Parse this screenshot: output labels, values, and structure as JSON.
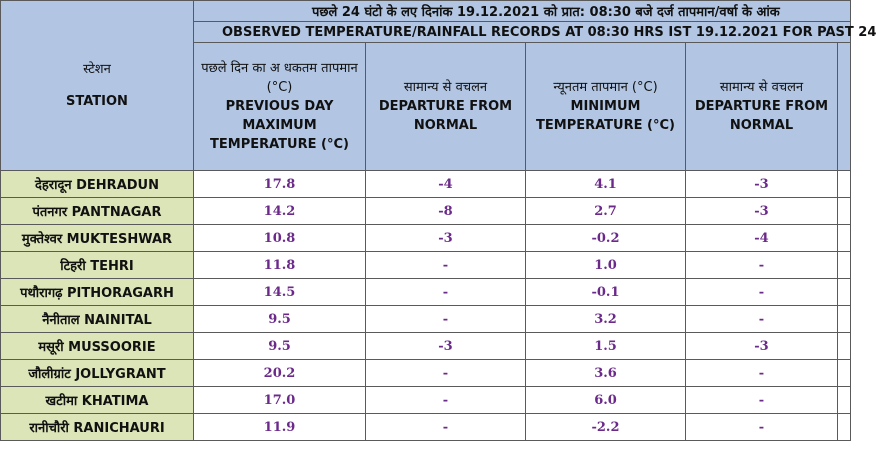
{
  "header": {
    "hindi_title": "पछले 24 घंटो के  लए दिनांक 19.12.2021 को प्रात: 08:30 बजे दर्ज तापमान/वर्षा के आंक",
    "english_title": "OBSERVED TEMPERATURE/RAINFALL RECORDS AT 08:30 HRS IST 19.12.2021 FOR PAST 24"
  },
  "columns": {
    "station_hi": "स्टेशन",
    "station_en": "STATION",
    "max_hi": "पछले दिन का अ धकतम तापमान (°C)",
    "max_en": "PREVIOUS DAY MAXIMUM TEMPERATURE (°C)",
    "dep1_hi": "सामान्य से  वचलन",
    "dep1_en": "DEPARTURE FROM NORMAL",
    "min_hi": "न्यूनतम तापमान (°C)",
    "min_en": "MINIMUM TEMPERATURE (°C)",
    "dep2_hi": "सामान्य से  वचलन",
    "dep2_en": "DEPARTURE FROM NORMAL"
  },
  "rows": [
    {
      "station": "देहरादून DEHRADUN",
      "max": "17.8",
      "max_dep": "-4",
      "min": "4.1",
      "min_dep": "-3"
    },
    {
      "station": "पंतनगर PANTNAGAR",
      "max": "14.2",
      "max_dep": "-8",
      "min": "2.7",
      "min_dep": "-3"
    },
    {
      "station": "मुक्तेश्वर MUKTESHWAR",
      "max": "10.8",
      "max_dep": "-3",
      "min": "-0.2",
      "min_dep": "-4"
    },
    {
      "station": "टिहरी TEHRI",
      "max": "11.8",
      "max_dep": "-",
      "min": "1.0",
      "min_dep": "-"
    },
    {
      "station": "पथौरागढ़ PITHORAGARH",
      "max": "14.5",
      "max_dep": "-",
      "min": "-0.1",
      "min_dep": "-"
    },
    {
      "station": "नैनीताल NAINITAL",
      "max": "9.5",
      "max_dep": "-",
      "min": "3.2",
      "min_dep": "-"
    },
    {
      "station": "मसूरी MUSSOORIE",
      "max": "9.5",
      "max_dep": "-3",
      "min": "1.5",
      "min_dep": "-3"
    },
    {
      "station": "जौलीग्रांट JOLLYGRANT",
      "max": "20.2",
      "max_dep": "-",
      "min": "3.6",
      "min_dep": "-"
    },
    {
      "station": "खटीमा KHATIMA",
      "max": "17.0",
      "max_dep": "-",
      "min": "6.0",
      "min_dep": "-"
    },
    {
      "station": "रानीचौरी RANICHAURI",
      "max": "11.9",
      "max_dep": "-",
      "min": "-2.2",
      "min_dep": "-"
    }
  ],
  "colors": {
    "header_bg": "#b2c6e3",
    "station_bg": "#dbe5b8",
    "value_text": "#6b2a8a"
  }
}
